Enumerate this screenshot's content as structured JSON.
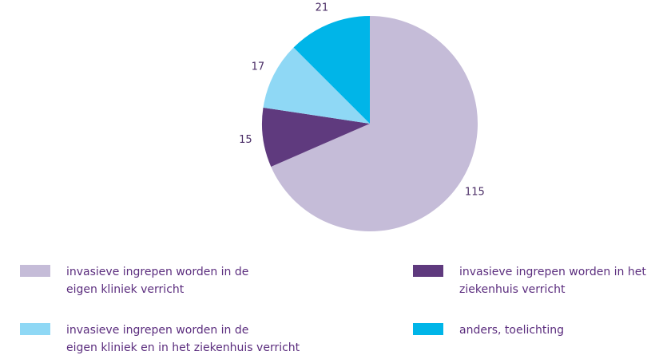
{
  "chart_data": {
    "type": "pie",
    "categories": [
      "invasieve ingrepen worden in de\neigen kliniek verricht",
      "invasieve ingrepen worden in het\nziekenhuis verricht",
      "invasieve ingrepen worden in de\neigen kliniek en in het ziekenhuis verricht",
      "anders, toelichting"
    ],
    "values": [
      115,
      15,
      17,
      21
    ],
    "colors": [
      "#c5bcd8",
      "#5f3a7e",
      "#8fd8f5",
      "#00b5e8"
    ]
  }
}
